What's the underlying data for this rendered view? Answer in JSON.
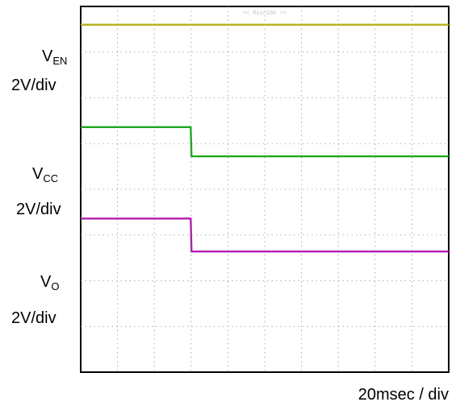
{
  "chart_data": {
    "type": "line",
    "xlabel": "20msec / div",
    "grid": true,
    "header_text": "<< Main10k >>",
    "x": [
      0,
      1,
      2,
      2.99,
      3.01,
      4,
      5,
      6,
      7,
      8,
      9,
      10
    ],
    "xlim": [
      0,
      10
    ],
    "channels": [
      {
        "label_main": "V",
        "label_sub": "EN",
        "scale": "2V/div",
        "color": "#b5b01e",
        "values": [
          9.5,
          9.5,
          9.5,
          9.5,
          9.5,
          9.5,
          9.5,
          9.5,
          9.5,
          9.5,
          9.5,
          9.5
        ]
      },
      {
        "label_main": "V",
        "label_sub": "CC",
        "scale": "2V/div",
        "color": "#21a81e",
        "values": [
          6.7,
          6.7,
          6.7,
          6.7,
          5.9,
          5.9,
          5.9,
          5.9,
          5.9,
          5.9,
          5.9,
          5.9
        ]
      },
      {
        "label_main": "V",
        "label_sub": "O",
        "scale": "2V/div",
        "color": "#b01eb0",
        "values": [
          4.2,
          4.2,
          4.2,
          4.2,
          3.3,
          3.3,
          3.3,
          3.3,
          3.3,
          3.3,
          3.3,
          3.3
        ]
      }
    ],
    "ylim": [
      0,
      10
    ]
  }
}
